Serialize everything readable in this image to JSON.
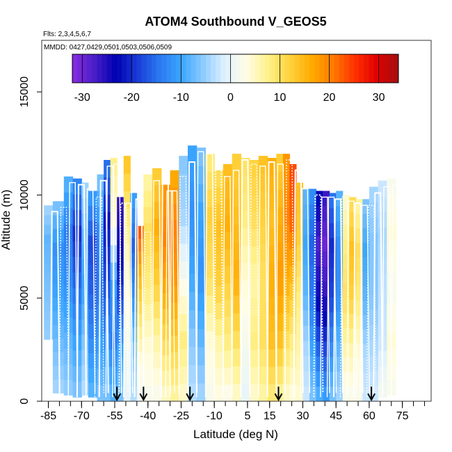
{
  "chart_data": {
    "type": "heatmap",
    "title": "ATOM4 Southbound V_GEOS5",
    "subtitle_flights": "Flts: 2,3,4,5,6,7",
    "subtitle_dates": "MMDD: 0427,0429,0501,0503,0506,0509",
    "xlabel": "Latitude (deg N)",
    "ylabel": "Altitude (m)",
    "xlim": [
      -88,
      88
    ],
    "ylim": [
      0,
      17500
    ],
    "x_major_ticks": [
      -85,
      -70,
      -55,
      -40,
      -25,
      -10,
      5,
      15,
      30,
      45,
      60,
      75
    ],
    "x_major_tick_labels": [
      "-85",
      "-70",
      "-55",
      "-40",
      "-25",
      "-10",
      "5",
      "15",
      "30",
      "45",
      "60",
      "75"
    ],
    "y_ticks": [
      0,
      5000,
      10000,
      15000
    ],
    "y_tick_labels": [
      "0",
      "5000",
      "10000",
      "15000"
    ],
    "colorbar": {
      "range": [
        -32,
        34
      ],
      "ticks": [
        -30,
        -20,
        -10,
        0,
        10,
        20,
        30
      ],
      "tick_labels": [
        "-30",
        "-20",
        "-10",
        "0",
        "10",
        "20",
        "30"
      ],
      "colors": [
        "#8a2be2",
        "#4a1fc8",
        "#0000b0",
        "#1a3cd8",
        "#2a78f0",
        "#3aa6ff",
        "#8ccaff",
        "#dff1ff",
        "#fffde6",
        "#fff18a",
        "#ffd23c",
        "#ffab00",
        "#ff7a00",
        "#ff3000",
        "#e00000",
        "#a21010"
      ]
    },
    "profile_columns": [
      {
        "lat": -87,
        "lat2": -83,
        "top": 9500,
        "bottom": 3000,
        "v": [
          -4,
          -8,
          -7,
          -6,
          -5
        ]
      },
      {
        "lat": -83,
        "lat2": -78,
        "top": 9700,
        "bottom": 400,
        "v": [
          -6,
          -12,
          -10,
          -7,
          -4
        ]
      },
      {
        "lat": -78,
        "lat2": -74,
        "top": 10900,
        "bottom": 300,
        "v": [
          -8,
          -14,
          -12,
          -8,
          -5
        ]
      },
      {
        "lat": -74,
        "lat2": -70,
        "top": 10800,
        "bottom": 200,
        "v": [
          -12,
          -20,
          -15,
          -10,
          -6
        ]
      },
      {
        "lat": -70,
        "lat2": -67,
        "top": 10600,
        "bottom": 300,
        "v": [
          -4,
          -8,
          -10,
          -6,
          -3
        ]
      },
      {
        "lat": -67,
        "lat2": -63,
        "top": 10200,
        "bottom": 200,
        "v": [
          -10,
          -18,
          -16,
          -12,
          -8
        ]
      },
      {
        "lat": -63,
        "lat2": -60,
        "top": 11000,
        "bottom": 0,
        "v": [
          -6,
          -12,
          -14,
          -10,
          -6
        ]
      },
      {
        "lat": -60,
        "lat2": -57,
        "top": 11700,
        "bottom": 0,
        "v": [
          -14,
          -22,
          -18,
          -12,
          -6
        ]
      },
      {
        "lat": -57,
        "lat2": -54,
        "top": 11800,
        "bottom": 0,
        "v": [
          8,
          4,
          -10,
          -14,
          -8
        ]
      },
      {
        "lat": -54,
        "lat2": -51,
        "top": 9900,
        "bottom": 0,
        "v": [
          -26,
          -24,
          -18,
          -10,
          -6
        ]
      },
      {
        "lat": -51,
        "lat2": -48,
        "top": 11900,
        "bottom": 0,
        "v": [
          14,
          8,
          4,
          2,
          0
        ]
      },
      {
        "lat": -48,
        "lat2": -45,
        "top": 10100,
        "bottom": 0,
        "v": [
          -10,
          -16,
          -12,
          -6,
          -3
        ]
      },
      {
        "lat": -45,
        "lat2": -42,
        "top": 8500,
        "bottom": 0,
        "v": [
          24,
          16,
          10,
          4,
          1
        ]
      },
      {
        "lat": -42,
        "lat2": -38,
        "top": 11000,
        "bottom": 0,
        "v": [
          6,
          10,
          8,
          4,
          2
        ]
      },
      {
        "lat": -38,
        "lat2": -34,
        "top": 11300,
        "bottom": 0,
        "v": [
          12,
          16,
          12,
          6,
          2
        ]
      },
      {
        "lat": -34,
        "lat2": -30,
        "top": 10500,
        "bottom": 0,
        "v": [
          18,
          20,
          16,
          10,
          4
        ]
      },
      {
        "lat": -30,
        "lat2": -26,
        "top": 11200,
        "bottom": 0,
        "v": [
          16,
          20,
          18,
          12,
          6
        ]
      },
      {
        "lat": -26,
        "lat2": -22,
        "top": 11900,
        "bottom": 0,
        "v": [
          -6,
          -4,
          2,
          8,
          4
        ]
      },
      {
        "lat": -22,
        "lat2": -18,
        "top": 12400,
        "bottom": 0,
        "v": [
          -10,
          -12,
          -10,
          -6,
          -3
        ]
      },
      {
        "lat": -18,
        "lat2": -14,
        "top": 12300,
        "bottom": 0,
        "v": [
          -6,
          -10,
          -12,
          -8,
          -4
        ]
      },
      {
        "lat": -14,
        "lat2": -10,
        "top": 12000,
        "bottom": 0,
        "v": [
          8,
          12,
          10,
          4,
          2
        ]
      },
      {
        "lat": -10,
        "lat2": -6,
        "top": 11200,
        "bottom": 0,
        "v": [
          10,
          14,
          12,
          6,
          3
        ]
      },
      {
        "lat": -6,
        "lat2": -2,
        "top": 11500,
        "bottom": 0,
        "v": [
          14,
          16,
          12,
          8,
          2
        ]
      },
      {
        "lat": -2,
        "lat2": 2,
        "top": 12000,
        "bottom": 0,
        "v": [
          12,
          14,
          16,
          10,
          4
        ]
      },
      {
        "lat": 2,
        "lat2": 6,
        "top": 11800,
        "bottom": 0,
        "v": [
          10,
          8,
          4,
          2,
          0
        ]
      },
      {
        "lat": 6,
        "lat2": 10,
        "top": 11700,
        "bottom": 0,
        "v": [
          12,
          10,
          6,
          8,
          4
        ]
      },
      {
        "lat": 10,
        "lat2": 14,
        "top": 11900,
        "bottom": 0,
        "v": [
          14,
          12,
          10,
          10,
          6
        ]
      },
      {
        "lat": 14,
        "lat2": 18,
        "top": 11800,
        "bottom": 0,
        "v": [
          16,
          14,
          16,
          14,
          8
        ]
      },
      {
        "lat": 18,
        "lat2": 21,
        "top": 12000,
        "bottom": 0,
        "v": [
          12,
          16,
          18,
          14,
          6
        ]
      },
      {
        "lat": 21,
        "lat2": 24,
        "top": 12000,
        "bottom": 0,
        "v": [
          18,
          20,
          16,
          10,
          4
        ]
      },
      {
        "lat": 24,
        "lat2": 27,
        "top": 11500,
        "bottom": 0,
        "v": [
          24,
          22,
          14,
          8,
          3
        ]
      },
      {
        "lat": 27,
        "lat2": 30,
        "top": 10600,
        "bottom": 0,
        "v": [
          14,
          12,
          8,
          6,
          4
        ]
      },
      {
        "lat": 30,
        "lat2": 33,
        "top": 10300,
        "bottom": 0,
        "v": [
          -8,
          -10,
          -8,
          -4,
          -2
        ]
      },
      {
        "lat": 33,
        "lat2": 36,
        "top": 10300,
        "bottom": 0,
        "v": [
          -12,
          -16,
          -14,
          -10,
          -6
        ]
      },
      {
        "lat": 36,
        "lat2": 39,
        "top": 10200,
        "bottom": 0,
        "v": [
          -22,
          -28,
          -24,
          -16,
          -8
        ]
      },
      {
        "lat": 39,
        "lat2": 42,
        "top": 10200,
        "bottom": 0,
        "v": [
          -26,
          -30,
          -26,
          -18,
          -10
        ]
      },
      {
        "lat": 42,
        "lat2": 45,
        "top": 10100,
        "bottom": 0,
        "v": [
          -14,
          -20,
          -18,
          -12,
          -6
        ]
      },
      {
        "lat": 45,
        "lat2": 48,
        "top": 10200,
        "bottom": 0,
        "v": [
          -8,
          -12,
          -12,
          -8,
          -4
        ]
      },
      {
        "lat": 48,
        "lat2": 51,
        "top": 10000,
        "bottom": 0,
        "v": [
          4,
          8,
          10,
          6,
          2
        ]
      },
      {
        "lat": 51,
        "lat2": 54,
        "top": 9900,
        "bottom": 0,
        "v": [
          10,
          14,
          12,
          6,
          2
        ]
      },
      {
        "lat": 54,
        "lat2": 57,
        "top": 9800,
        "bottom": 0,
        "v": [
          6,
          10,
          8,
          4,
          2
        ]
      },
      {
        "lat": 57,
        "lat2": 60,
        "top": 9800,
        "bottom": 0,
        "v": [
          -6,
          -10,
          -8,
          -4,
          -2
        ]
      },
      {
        "lat": 60,
        "lat2": 64,
        "top": 10400,
        "bottom": 0,
        "v": [
          -4,
          -6,
          -6,
          -4,
          -2
        ]
      },
      {
        "lat": 64,
        "lat2": 68,
        "top": 10700,
        "bottom": 200,
        "v": [
          -2,
          -4,
          -3,
          -2,
          2
        ]
      },
      {
        "lat": 68,
        "lat2": 72,
        "top": 10800,
        "bottom": 300,
        "v": [
          2,
          4,
          2,
          4,
          2
        ]
      }
    ],
    "flight_track_lats": [
      -84,
      -80,
      -76,
      -72,
      -68,
      -64,
      -62,
      -59,
      -56,
      -53,
      -51,
      -48,
      -46,
      -42,
      -38,
      -34,
      -30,
      -26,
      -22,
      -18,
      -14,
      -10,
      -6,
      -2,
      2,
      6,
      10,
      14,
      18,
      22,
      26,
      29,
      -32,
      35,
      38,
      41,
      44,
      47,
      50,
      53,
      56,
      59,
      62,
      66,
      70
    ],
    "arrows_lat": [
      -54,
      -42,
      -21,
      19,
      61
    ]
  }
}
